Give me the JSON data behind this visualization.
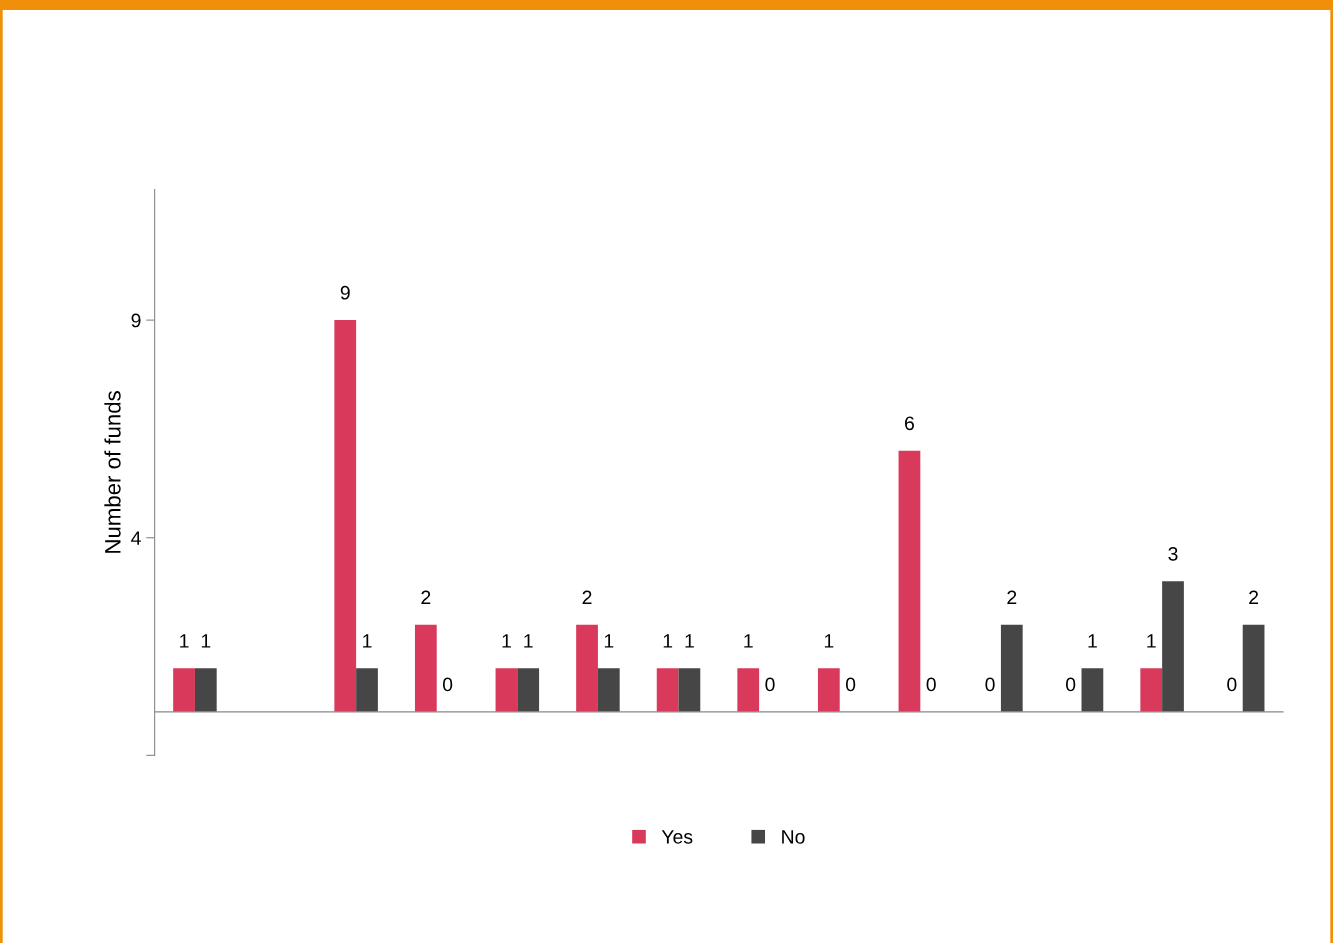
{
  "chart_data": {
    "type": "bar",
    "ylabel": "Number of funds",
    "categories": [
      null,
      null,
      null,
      null,
      null,
      null,
      null,
      null,
      null,
      null,
      null,
      null,
      null,
      null
    ],
    "series": [
      {
        "name": "Yes",
        "color": "#d9395a",
        "values": [
          1,
          null,
          9,
          2,
          1,
          2,
          1,
          1,
          1,
          6,
          0,
          0,
          1,
          0
        ]
      },
      {
        "name": "No",
        "color": "#464646",
        "values": [
          1,
          null,
          1,
          0,
          1,
          1,
          1,
          0,
          0,
          0,
          2,
          1,
          3,
          2
        ]
      }
    ],
    "ylim": [
      -1,
      12
    ],
    "yticks": [
      4,
      9,
      {
        "value": -1,
        "label": null
      }
    ],
    "data_labels": true,
    "legend": "bottom",
    "grid": false
  }
}
